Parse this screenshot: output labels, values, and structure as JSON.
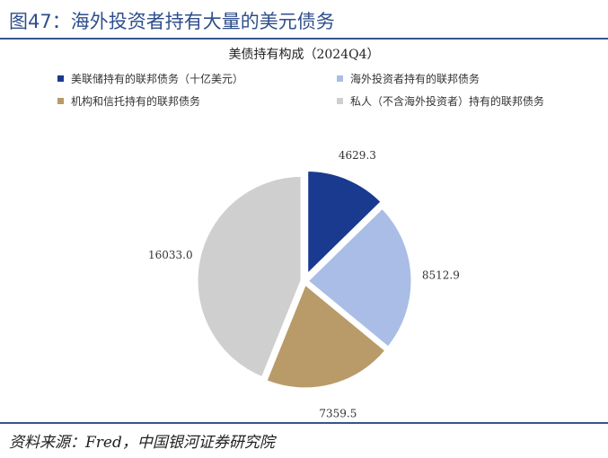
{
  "figure": {
    "title": "图47：海外投资者持有大量的美元债务",
    "source": "资料来源：Fred，中国银河证券研究院"
  },
  "chart_data": {
    "type": "pie",
    "title": "美债持有构成（2024Q4）",
    "unit": "十亿美元",
    "legend_position": "top",
    "slices": [
      {
        "label": "美联储持有的联邦债务（十亿美元）",
        "value": 4629.3,
        "value_label": "4629.3",
        "color": "#1a3a8f"
      },
      {
        "label": "海外投资者持有的联邦债务",
        "value": 8512.9,
        "value_label": "8512.9",
        "color": "#a9bde6"
      },
      {
        "label": "机构和信托持有的联邦债务",
        "value": 7359.5,
        "value_label": "7359.5",
        "color": "#b89b68"
      },
      {
        "label": "私人（不含海外投资者）持有的联邦债务",
        "value": 16033.0,
        "value_label": "16033.0",
        "color": "#cfcfcf"
      }
    ]
  }
}
